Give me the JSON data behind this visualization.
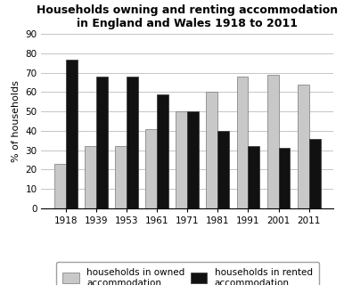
{
  "title": "Households owning and renting accommodation\nin England and Wales 1918 to 2011",
  "ylabel": "% of households",
  "years": [
    "1918",
    "1939",
    "1953",
    "1961",
    "1971",
    "1981",
    "1991",
    "2001",
    "2011"
  ],
  "owned": [
    23,
    32,
    32,
    41,
    50,
    60,
    68,
    69,
    64
  ],
  "rented": [
    77,
    68,
    68,
    59,
    50,
    40,
    32,
    31,
    36
  ],
  "owned_color": "#c8c8c8",
  "rented_color": "#111111",
  "owned_label": "households in owned\naccommodation",
  "rented_label": "households in rented\naccommodation",
  "ylim": [
    0,
    90
  ],
  "yticks": [
    0,
    10,
    20,
    30,
    40,
    50,
    60,
    70,
    80,
    90
  ],
  "bar_width": 0.38,
  "title_fontsize": 9,
  "axis_fontsize": 8,
  "tick_fontsize": 7.5,
  "legend_fontsize": 7.5,
  "background_color": "#ffffff",
  "grid_color": "#bbbbbb"
}
